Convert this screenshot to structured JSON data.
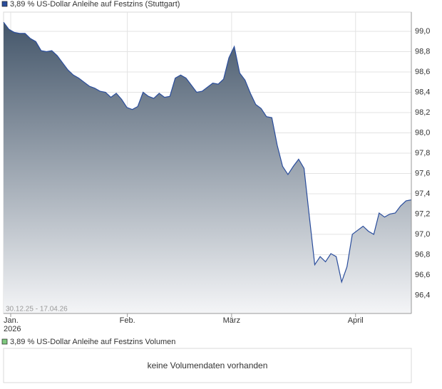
{
  "chart_data": {
    "type": "area",
    "legend": "3,89 % US-Dollar Anleihe auf Festzins (Stuttgart)",
    "date_range": "30.12.25 - 17.04.26",
    "series": [
      {
        "name": "3,89 % US-Dollar Anleihe auf Festzins (Stuttgart)",
        "color": "#2a4d9c",
        "values": [
          99.09,
          99.02,
          98.99,
          98.98,
          98.98,
          98.93,
          98.9,
          98.81,
          98.8,
          98.81,
          98.76,
          98.69,
          98.62,
          98.57,
          98.54,
          98.5,
          98.46,
          98.44,
          98.41,
          98.4,
          98.35,
          98.39,
          98.33,
          98.25,
          98.23,
          98.26,
          98.4,
          98.36,
          98.34,
          98.39,
          98.35,
          98.36,
          98.54,
          98.57,
          98.54,
          98.47,
          98.4,
          98.41,
          98.45,
          98.49,
          98.48,
          98.53,
          98.74,
          98.85,
          98.59,
          98.52,
          98.39,
          98.28,
          98.24,
          98.16,
          98.15,
          97.88,
          97.67,
          97.59,
          97.67,
          97.74,
          97.65,
          97.17,
          96.7,
          96.78,
          96.73,
          96.81,
          96.78,
          96.53,
          96.68,
          97.0,
          97.04,
          97.08,
          97.03,
          97.0,
          97.21,
          97.17,
          97.2,
          97.21,
          97.28,
          97.33,
          97.34
        ]
      }
    ],
    "xlim": [
      0,
      76
    ],
    "xticks": [
      {
        "value": 1.33,
        "label": "Jan."
      },
      {
        "value": 23.07,
        "label": "Feb."
      },
      {
        "value": 42.5,
        "label": "März"
      },
      {
        "value": 65.6,
        "label": "April"
      }
    ],
    "year": "2026",
    "ylim": [
      96.22,
      99.19
    ],
    "yticks": [
      {
        "value": 96.4,
        "label": "96,4"
      },
      {
        "value": 96.6,
        "label": "96,6"
      },
      {
        "value": 96.8,
        "label": "96,8"
      },
      {
        "value": 97.0,
        "label": "97,0"
      },
      {
        "value": 97.2,
        "label": "97,2"
      },
      {
        "value": 97.4,
        "label": "97,4"
      },
      {
        "value": 97.6,
        "label": "97,6"
      },
      {
        "value": 97.8,
        "label": "97,8"
      },
      {
        "value": 98.0,
        "label": "98,0"
      },
      {
        "value": 98.2,
        "label": "98,2"
      },
      {
        "value": 98.4,
        "label": "98,4"
      },
      {
        "value": 98.6,
        "label": "98,6"
      },
      {
        "value": 98.8,
        "label": "98,8"
      },
      {
        "value": 99.0,
        "label": "99,0"
      }
    ],
    "grid": true,
    "volume_legend": "3,89 % US-Dollar Anleihe auf Festzins Volumen",
    "volume_color": "#7fc97f",
    "volume_message": "keine Volumendaten vorhanden"
  }
}
